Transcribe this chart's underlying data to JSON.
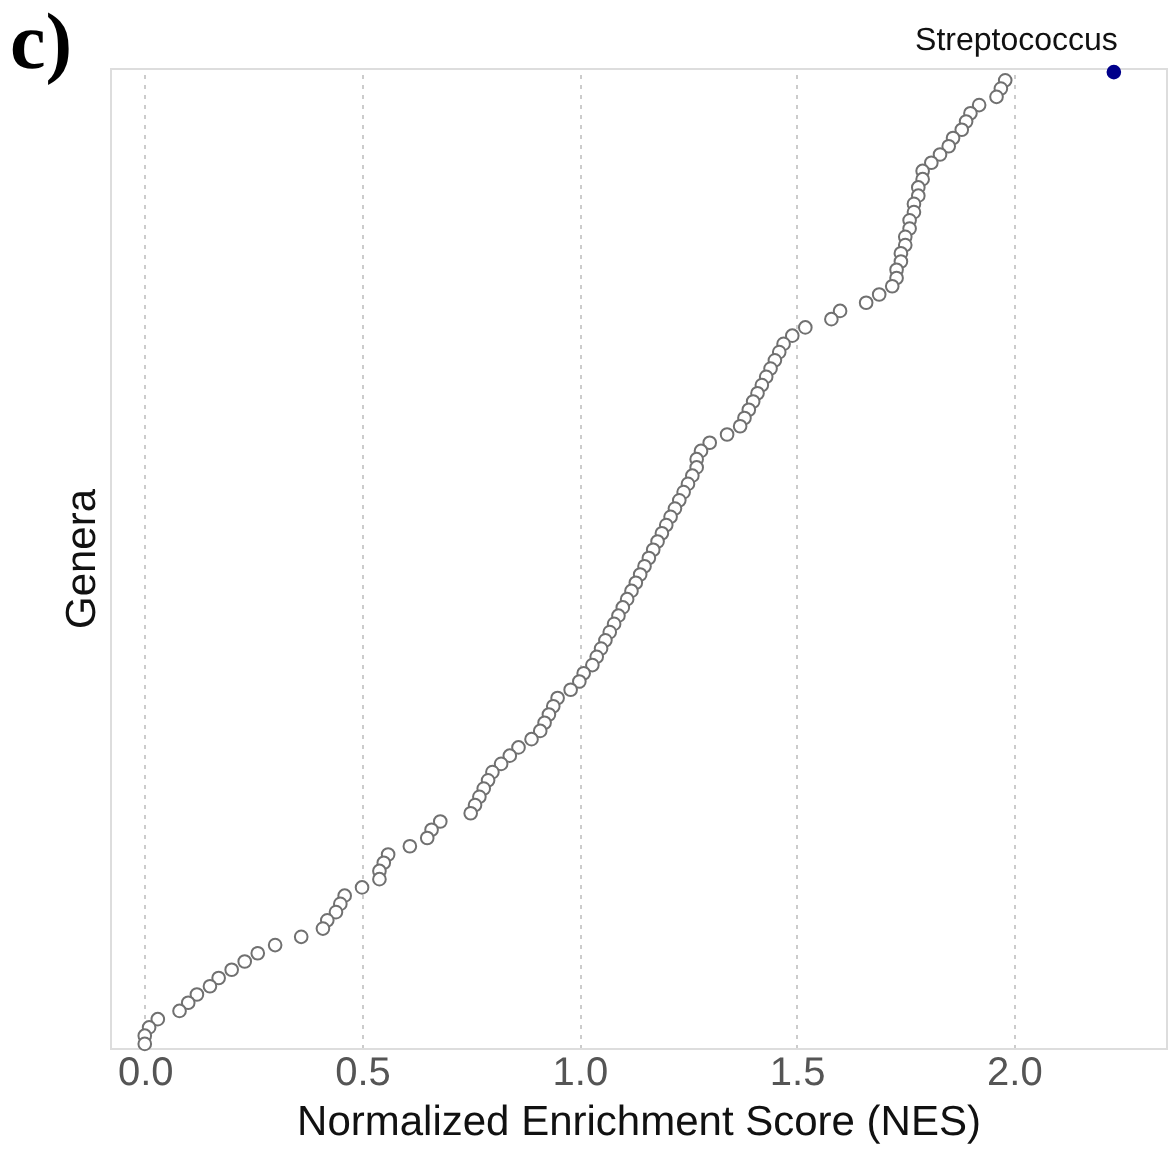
{
  "chart_data": {
    "type": "scatter",
    "orientation": "horizontal",
    "title": "c)",
    "xlabel": "Normalized Enrichment Score (NES)",
    "ylabel": "Genera",
    "xlim": [
      -0.08,
      2.35
    ],
    "xticks": [
      {
        "value": 0,
        "label": "0.0"
      },
      0.5,
      {
        "value": 1,
        "label": "1.0"
      },
      1.5,
      {
        "value": 2,
        "label": "2.0"
      }
    ],
    "grid": "x",
    "marker": "circle",
    "categories": [
      null,
      null,
      null,
      null,
      null,
      null,
      null,
      null,
      null,
      null,
      null,
      null,
      null,
      null,
      null,
      null,
      null,
      null,
      null,
      null,
      null,
      null,
      null,
      null,
      null,
      null,
      null,
      null,
      null,
      null,
      null,
      null,
      null,
      null,
      null,
      null,
      null,
      null,
      null,
      null,
      null,
      null,
      null,
      null,
      null,
      null,
      null,
      null,
      null,
      null,
      null,
      null,
      null,
      null,
      null,
      null,
      null,
      null,
      null,
      null,
      null,
      null,
      null,
      null,
      null,
      null,
      null,
      null,
      null,
      null,
      null,
      null,
      null,
      null,
      null,
      null,
      null,
      null,
      null,
      null,
      null,
      null,
      null,
      null,
      null,
      null,
      null,
      null,
      null,
      null,
      null,
      null,
      null,
      null,
      null,
      null,
      null,
      null,
      null,
      null,
      null,
      null,
      null,
      null,
      null,
      null,
      null,
      null,
      null,
      null,
      null,
      null,
      null,
      null,
      null,
      null,
      null,
      null,
      null
    ],
    "series": [
      {
        "name": "Streptococcus",
        "color": "#00008b",
        "values": [
          2.23,
          null,
          null,
          null,
          null,
          null,
          null,
          null,
          null,
          null,
          null,
          null,
          null,
          null,
          null,
          null,
          null,
          null,
          null,
          null,
          null,
          null,
          null,
          null,
          null,
          null,
          null,
          null,
          null,
          null,
          null,
          null,
          null,
          null,
          null,
          null,
          null,
          null,
          null,
          null,
          null,
          null,
          null,
          null,
          null,
          null,
          null,
          null,
          null,
          null,
          null,
          null,
          null,
          null,
          null,
          null,
          null,
          null,
          null,
          null,
          null,
          null,
          null,
          null,
          null,
          null,
          null,
          null,
          null,
          null,
          null,
          null,
          null,
          null,
          null,
          null,
          null,
          null,
          null,
          null,
          null,
          null,
          null,
          null,
          null,
          null,
          null,
          null,
          null,
          null,
          null,
          null,
          null,
          null,
          null,
          null,
          null,
          null,
          null,
          null,
          null,
          null,
          null,
          null,
          null,
          null,
          null,
          null,
          null,
          null,
          null,
          null,
          null,
          null,
          null,
          null,
          null,
          null,
          null
        ]
      },
      {
        "color": "#707070",
        "values": [
          null,
          1.98,
          1.97,
          1.96,
          1.92,
          1.9,
          1.89,
          1.88,
          1.86,
          1.85,
          1.83,
          1.81,
          1.79,
          1.79,
          1.78,
          1.78,
          1.77,
          1.77,
          1.76,
          1.76,
          1.75,
          1.75,
          1.74,
          1.74,
          1.73,
          1.73,
          1.72,
          1.69,
          1.66,
          1.6,
          1.58,
          1.52,
          1.49,
          1.47,
          1.46,
          1.45,
          1.44,
          1.43,
          1.42,
          1.41,
          1.4,
          1.39,
          1.38,
          1.37,
          1.34,
          1.3,
          1.28,
          1.27,
          1.27,
          1.26,
          1.25,
          1.24,
          1.23,
          1.22,
          1.21,
          1.2,
          1.19,
          1.18,
          1.17,
          1.16,
          1.15,
          1.14,
          1.13,
          1.12,
          1.11,
          1.1,
          1.09,
          1.08,
          1.07,
          1.06,
          1.05,
          1.04,
          1.03,
          1.01,
          1.0,
          0.98,
          0.95,
          0.94,
          0.93,
          0.92,
          0.91,
          0.89,
          0.86,
          0.84,
          0.82,
          0.8,
          0.79,
          0.78,
          0.77,
          0.76,
          0.75,
          0.68,
          0.66,
          0.65,
          0.61,
          0.56,
          0.55,
          0.54,
          0.54,
          0.5,
          0.46,
          0.45,
          0.44,
          0.42,
          0.41,
          0.36,
          0.3,
          0.26,
          0.23,
          0.2,
          0.17,
          0.15,
          0.12,
          0.1,
          0.08,
          0.03,
          0.01,
          0.0,
          0.0
        ]
      }
    ]
  }
}
